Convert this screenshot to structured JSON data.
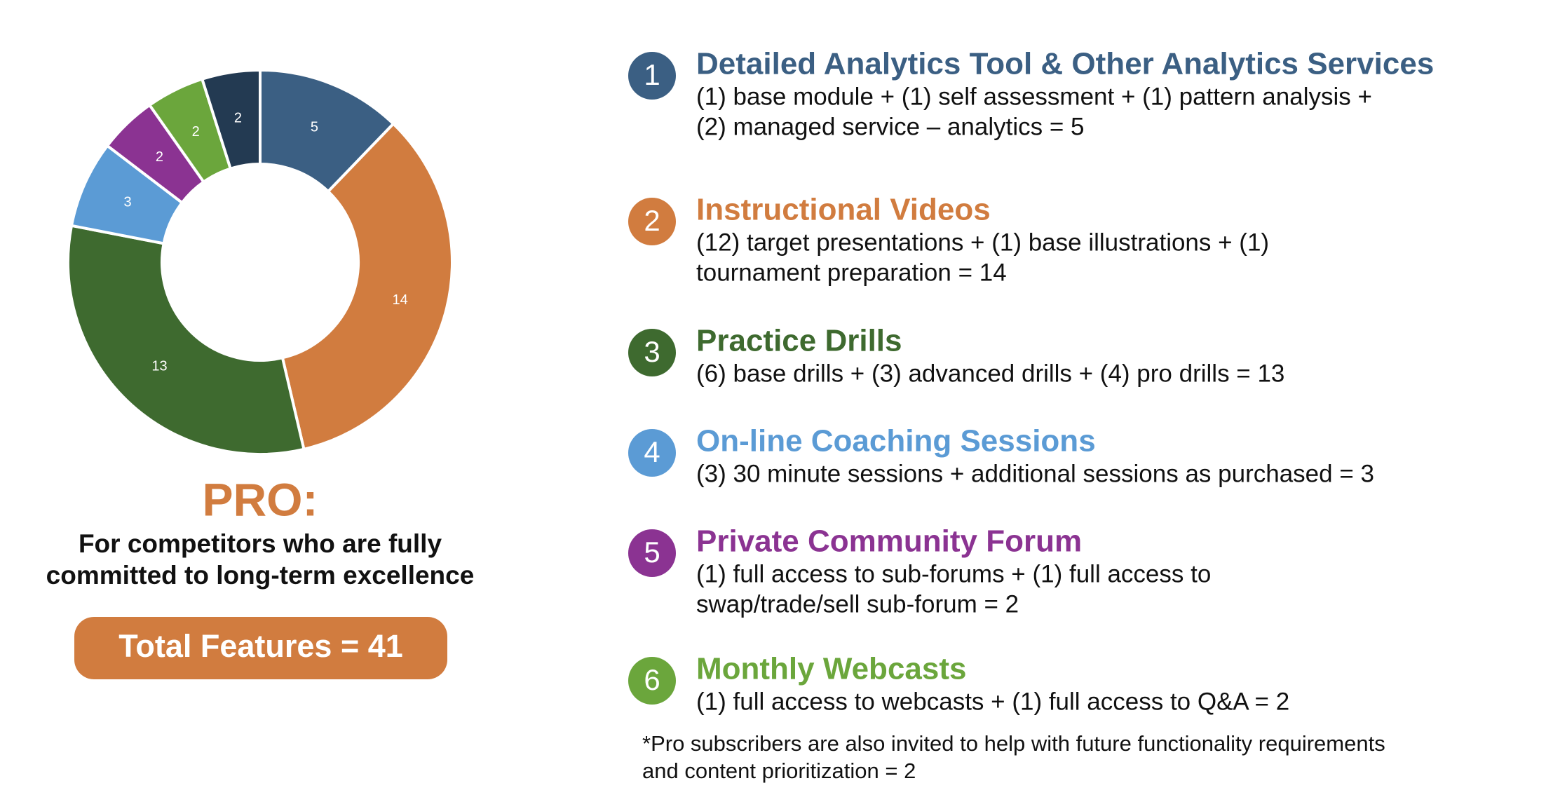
{
  "chart_data": {
    "type": "donut",
    "categories": [
      "Detailed Analytics Tool & Other Analytics Services",
      "Instructional Videos",
      "Practice Drills",
      "On-line Coaching Sessions",
      "Private Community Forum",
      "Monthly Webcasts",
      null
    ],
    "values": [
      5,
      14,
      13,
      3,
      2,
      2,
      2
    ],
    "colors": [
      "#3b5f83",
      "#d17c3f",
      "#3e6a2f",
      "#5b9bd5",
      "#8b3392",
      "#6ba63c",
      "#233a52"
    ]
  },
  "headline": "PRO:",
  "tagline": [
    "For competitors who are fully",
    "committed to long-term excellence"
  ],
  "total": "Total Features = 41",
  "items": [
    {
      "number": "1",
      "lines": [
        "(1) base module + (1) self assessment + (1) pattern analysis +",
        "(2) managed service – analytics = 5"
      ]
    },
    {
      "number": "2",
      "lines": [
        "(12) target presentations + (1) base illustrations + (1)",
        "tournament preparation = 14"
      ]
    },
    {
      "number": "3",
      "lines": [
        "(6) base drills + (3) advanced drills + (4) pro drills = 13"
      ]
    },
    {
      "number": "4",
      "lines": [
        "(3) 30 minute sessions + additional sessions as purchased = 3"
      ]
    },
    {
      "number": "5",
      "lines": [
        "(1) full access to sub-forums + (1) full access to",
        "swap/trade/sell sub-forum = 2"
      ]
    },
    {
      "number": "6",
      "lines": [
        "(1) full access to webcasts + (1) full access to Q&A = 2"
      ]
    }
  ],
  "footnote": [
    "*Pro subscribers are also invited to help with future functionality requirements",
    "and content prioritization = 2"
  ]
}
